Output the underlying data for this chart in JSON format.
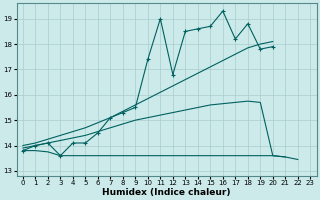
{
  "xlabel": "Humidex (Indice chaleur)",
  "background_color": "#cceaea",
  "grid_color": "#aacccc",
  "line_color": "#006060",
  "x_ticks": [
    0,
    1,
    2,
    3,
    4,
    5,
    6,
    7,
    8,
    9,
    10,
    11,
    12,
    13,
    14,
    15,
    16,
    17,
    18,
    19,
    20,
    21,
    22,
    23
  ],
  "xlim": [
    -0.5,
    23.5
  ],
  "ylim": [
    12.8,
    19.6
  ],
  "y_ticks": [
    13,
    14,
    15,
    16,
    17,
    18,
    19
  ],
  "line1_x": [
    0,
    1,
    2,
    3,
    4,
    5,
    6,
    7,
    8,
    9,
    10,
    11,
    12,
    13,
    14,
    15,
    16,
    17,
    18,
    19,
    20,
    21,
    22,
    23
  ],
  "line1_y": [
    13.8,
    14.0,
    14.1,
    13.6,
    14.1,
    14.1,
    14.5,
    15.1,
    15.3,
    15.5,
    17.4,
    19.0,
    16.8,
    18.5,
    18.6,
    18.7,
    19.3,
    18.2,
    18.8,
    17.8,
    17.9,
    null,
    null,
    null
  ],
  "line2_x": [
    0,
    1,
    2,
    3,
    4,
    5,
    6,
    7,
    8,
    9,
    10,
    11,
    12,
    13,
    14,
    15,
    16,
    17,
    18,
    19,
    20,
    21,
    22,
    23
  ],
  "line2_y": [
    14.0,
    14.1,
    14.25,
    14.4,
    14.55,
    14.7,
    14.9,
    15.1,
    15.35,
    15.6,
    15.85,
    16.1,
    16.35,
    16.6,
    16.85,
    17.1,
    17.35,
    17.6,
    17.85,
    18.0,
    18.1,
    null,
    null,
    null
  ],
  "line3_x": [
    0,
    1,
    2,
    3,
    4,
    5,
    6,
    7,
    8,
    9,
    10,
    11,
    12,
    13,
    14,
    15,
    16,
    17,
    18,
    19,
    20,
    21,
    22,
    23
  ],
  "line3_y": [
    13.9,
    14.0,
    14.1,
    14.2,
    14.3,
    14.4,
    14.55,
    14.7,
    14.85,
    15.0,
    15.1,
    15.2,
    15.3,
    15.4,
    15.5,
    15.6,
    15.65,
    15.7,
    15.75,
    15.7,
    13.6,
    13.55,
    null,
    null
  ],
  "line4_x": [
    0,
    1,
    2,
    3,
    4,
    5,
    6,
    7,
    8,
    9,
    10,
    11,
    12,
    13,
    14,
    15,
    16,
    17,
    18,
    19,
    20,
    21,
    22,
    23
  ],
  "line4_y": [
    13.8,
    13.8,
    13.75,
    13.6,
    13.6,
    13.6,
    13.6,
    13.6,
    13.6,
    13.6,
    13.6,
    13.6,
    13.6,
    13.6,
    13.6,
    13.6,
    13.6,
    13.6,
    13.6,
    13.6,
    13.6,
    13.55,
    13.45,
    null
  ]
}
